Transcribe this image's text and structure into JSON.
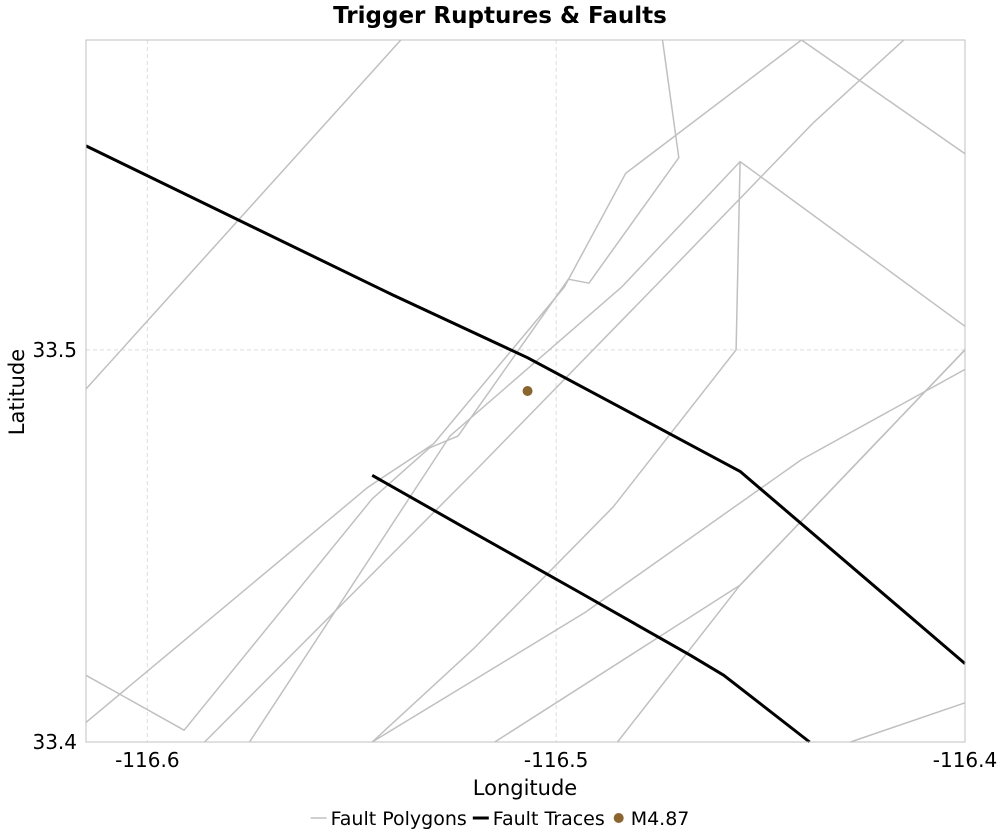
{
  "chart_data": {
    "type": "line",
    "title": "Trigger Ruptures & Faults",
    "xlabel": "Longitude",
    "ylabel": "Latitude",
    "xlim": [
      -116.615,
      -116.4
    ],
    "ylim": [
      33.4,
      33.579
    ],
    "x_ticks": [
      {
        "value": -116.6,
        "label": "-116.6"
      },
      {
        "value": -116.5,
        "label": "-116.5"
      },
      {
        "value": -116.4,
        "label": "-116.4"
      }
    ],
    "y_ticks": [
      {
        "value": 33.5,
        "label": "33.5"
      },
      {
        "value": 33.4,
        "label": "33.4"
      }
    ],
    "grid": true,
    "legend_position": "bottom-center",
    "legend": [
      {
        "label": "Fault Polygons",
        "type": "line",
        "color": "#c0c0c0"
      },
      {
        "label": "Fault Traces",
        "type": "line",
        "color": "#000000"
      },
      {
        "label": "M4.87",
        "type": "point",
        "color": "#8b6530"
      }
    ],
    "series": [
      {
        "name": "Fault Polygons",
        "color": "#c0c0c0",
        "paths": [
          [
            [
              -116.615,
              33.49
            ],
            [
              -116.538,
              33.579
            ]
          ],
          [
            [
              -116.615,
              33.417
            ],
            [
              -116.591,
              33.403
            ],
            [
              -116.545,
              33.462
            ],
            [
              -116.531,
              33.475
            ],
            [
              -116.524,
              33.478
            ],
            [
              -116.497,
              33.518
            ],
            [
              -116.492,
              33.517
            ],
            [
              -116.47,
              33.549
            ],
            [
              -116.474,
              33.579
            ]
          ],
          [
            [
              -116.615,
              33.405
            ],
            [
              -116.546,
              33.465
            ],
            [
              -116.53,
              33.476
            ],
            [
              -116.498,
              33.516
            ],
            [
              -116.483,
              33.545
            ],
            [
              -116.44,
              33.579
            ]
          ],
          [
            [
              -116.586,
              33.4
            ],
            [
              -116.519,
              33.47
            ],
            [
              -116.476,
              33.516
            ],
            [
              -116.437,
              33.558
            ],
            [
              -116.415,
              33.579
            ]
          ],
          [
            [
              -116.575,
              33.4
            ],
            [
              -116.526,
              33.478
            ],
            [
              -116.484,
              33.516
            ],
            [
              -116.455,
              33.548
            ]
          ],
          [
            [
              -116.545,
              33.4
            ],
            [
              -116.52,
              33.424
            ],
            [
              -116.486,
              33.46
            ],
            [
              -116.456,
              33.5
            ],
            [
              -116.455,
              33.548
            ],
            [
              -116.4,
              33.506
            ]
          ],
          [
            [
              -116.545,
              33.4
            ],
            [
              -116.493,
              33.433
            ],
            [
              -116.44,
              33.472
            ],
            [
              -116.4,
              33.495
            ]
          ],
          [
            [
              -116.515,
              33.4
            ],
            [
              -116.455,
              33.44
            ],
            [
              -116.4,
              33.5
            ]
          ],
          [
            [
              -116.485,
              33.4
            ],
            [
              -116.455,
              33.44
            ],
            [
              -116.4,
              33.5
            ]
          ],
          [
            [
              -116.428,
              33.4
            ],
            [
              -116.4,
              33.41
            ]
          ],
          [
            [
              -116.44,
              33.579
            ],
            [
              -116.4,
              33.55
            ]
          ]
        ]
      },
      {
        "name": "Fault Traces",
        "color": "#000000",
        "paths": [
          [
            [
              -116.615,
              33.552
            ],
            [
              -116.54,
              33.514
            ],
            [
              -116.507,
              33.498
            ],
            [
              -116.455,
              33.469
            ],
            [
              -116.4,
              33.42
            ]
          ],
          [
            [
              -116.545,
              33.468
            ],
            [
              -116.523,
              33.455
            ],
            [
              -116.494,
              33.438
            ],
            [
              -116.467,
              33.422
            ],
            [
              -116.459,
              33.417
            ],
            [
              -116.438,
              33.4
            ]
          ]
        ]
      }
    ],
    "points": [
      {
        "name": "M4.87",
        "x": -116.507,
        "y": 33.4895,
        "color": "#8b6530"
      }
    ]
  }
}
